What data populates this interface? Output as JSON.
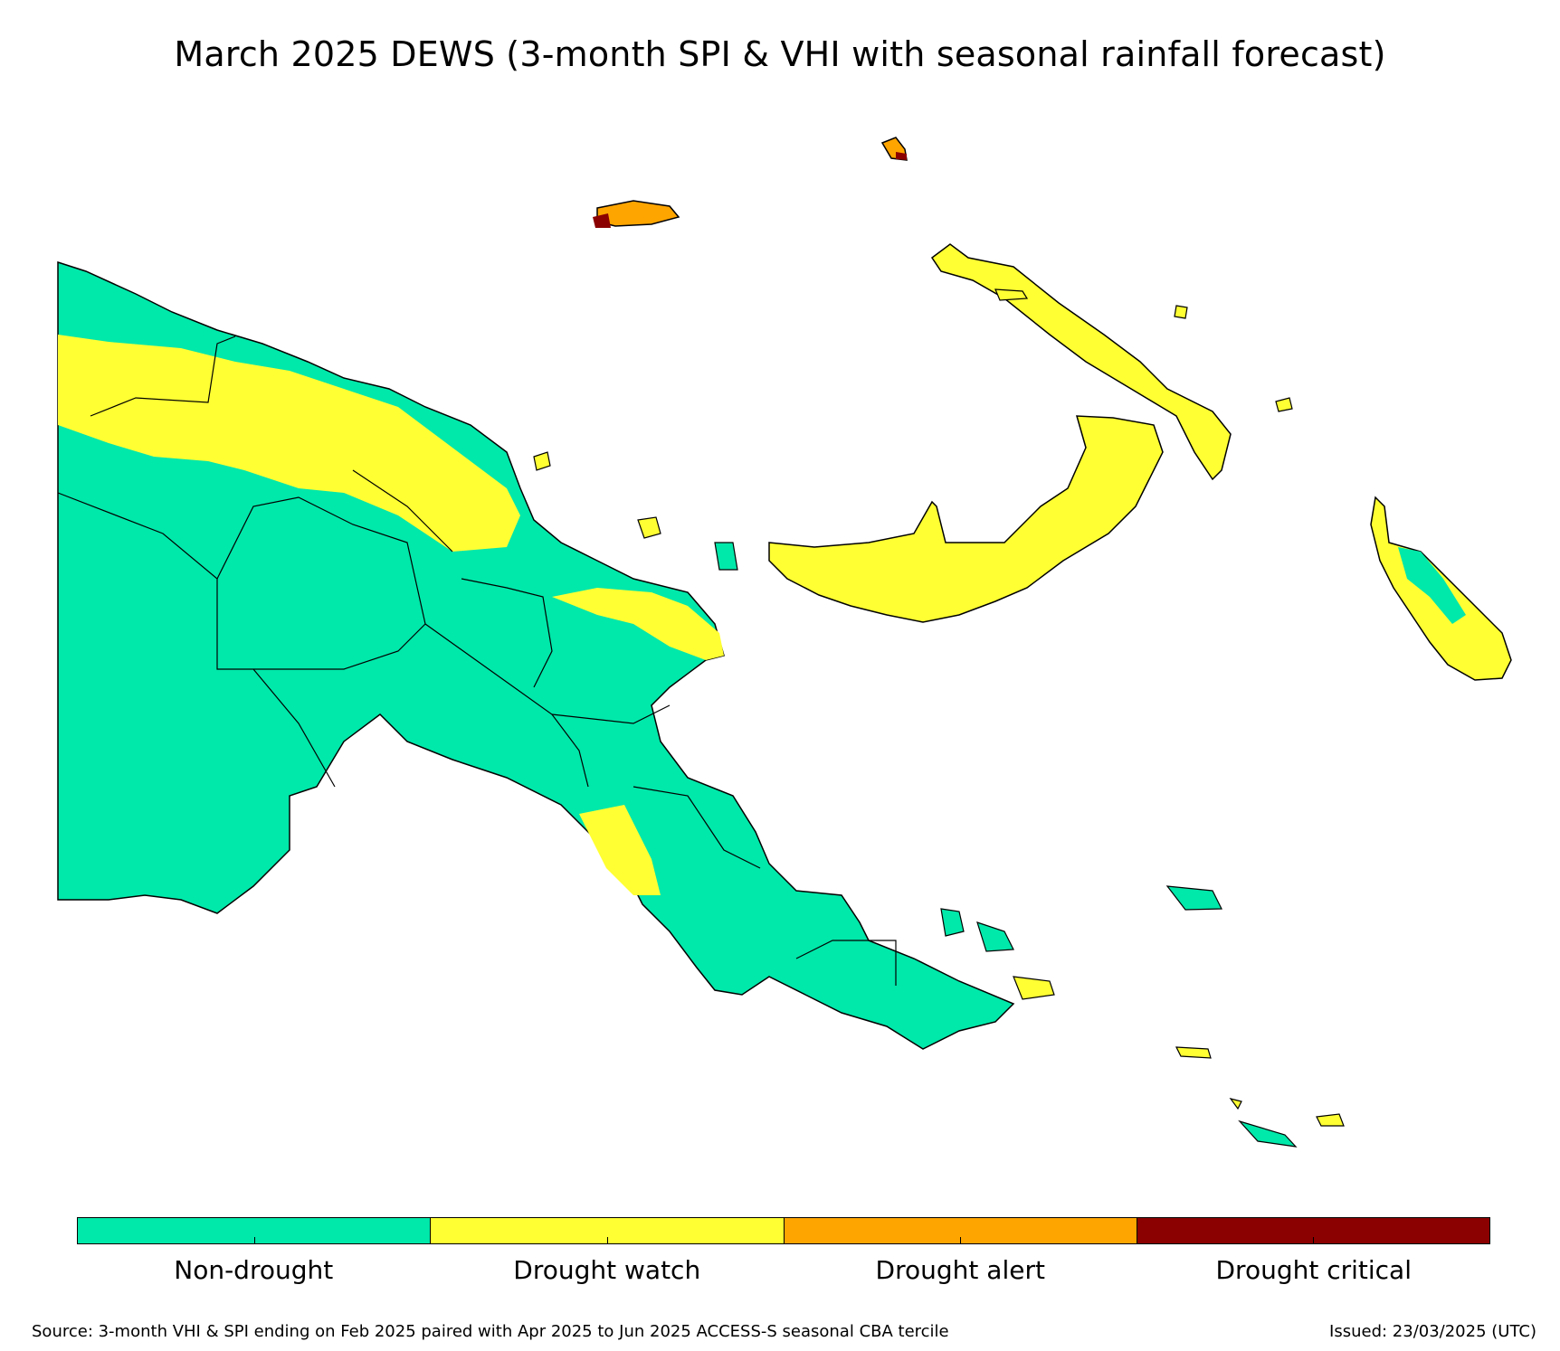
{
  "title": "March 2025 DEWS (3-month SPI & VHI with seasonal rainfall forecast)",
  "colors": {
    "non_drought": "#00e8aa",
    "drought_watch": "#ffff33",
    "drought_alert": "#ffa500",
    "drought_critical": "#8b0000"
  },
  "legend": {
    "items": [
      {
        "label": "Non-drought",
        "color": "#00e8aa"
      },
      {
        "label": "Drought watch",
        "color": "#ffff33"
      },
      {
        "label": "Drought alert",
        "color": "#ffa500"
      },
      {
        "label": "Drought critical",
        "color": "#8b0000"
      }
    ]
  },
  "footer": {
    "source": "Source: 3-month VHI & SPI ending on Feb 2025 paired with Apr 2025 to Jun 2025 ACCESS-S seasonal CBA tercile",
    "issued": "Issued: 23/03/2025 (UTC)"
  }
}
